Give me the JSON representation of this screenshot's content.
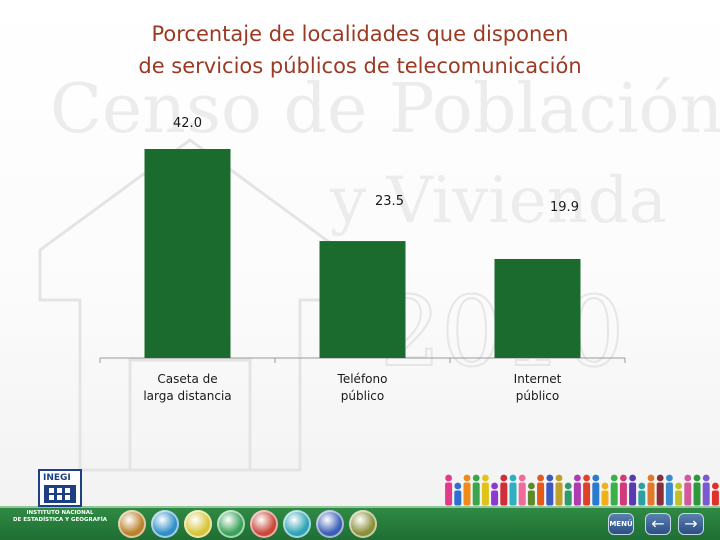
{
  "title": {
    "line1": "Porcentaje de localidades que disponen",
    "line2": "de servicios públicos de telecomunicación"
  },
  "watermark": {
    "line1": "Censo de Población",
    "line2": "y Vivienda",
    "line3": "2010"
  },
  "chart_data": {
    "type": "bar",
    "title": "Porcentaje de localidades que disponen de servicios públicos de telecomunicación",
    "categories": [
      [
        "Caseta de",
        "larga distancia"
      ],
      [
        "Teléfono",
        "público"
      ],
      [
        "Internet",
        "público"
      ]
    ],
    "values": [
      42.0,
      23.5,
      19.9
    ],
    "value_labels": [
      "42.0",
      "23.5",
      "19.9"
    ],
    "xlabel": "",
    "ylabel": "",
    "ylim": [
      0,
      42
    ],
    "grid": false,
    "legend": "none",
    "bar_color": "#1b6b2e"
  },
  "logo": {
    "word": "INEGI",
    "caption_line1": "INSTITUTO NACIONAL",
    "caption_line2": "DE ESTADÍSTICA Y GEOGRAFÍA"
  },
  "footer": {
    "menu_label": "MENÚ",
    "back_glyph": "←",
    "forward_glyph": "→",
    "nav_icon_colors": [
      "#b9822a",
      "#2f8fc9",
      "#d6c53a",
      "#3aa35a",
      "#c9483a",
      "#2fa3b5",
      "#3a5fb5",
      "#8a8f3a"
    ],
    "people_colors": [
      "#e33a8a",
      "#2f6fd0",
      "#f08a1a",
      "#3aa54a",
      "#e0c21a",
      "#8a3ad0",
      "#d02f3a",
      "#2fb0c0",
      "#f06a9a",
      "#5a8a2a",
      "#e35a1a",
      "#3a5ac0",
      "#c0a02a",
      "#2f9a6a",
      "#b03ab0",
      "#e0402a",
      "#2a7ad0",
      "#f0b01a",
      "#3ab04a",
      "#d03a7a",
      "#5a3ab0",
      "#2fa0a0",
      "#e07a2a",
      "#8a2f3a",
      "#3a8ad0",
      "#c0c02a",
      "#d05a9a",
      "#2a9a3a",
      "#7a5ad0",
      "#e0302a"
    ]
  }
}
